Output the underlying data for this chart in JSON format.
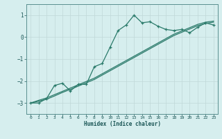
{
  "title": "",
  "xlabel": "Humidex (Indice chaleur)",
  "ylabel": "",
  "bg_color": "#d6eeee",
  "grid_color": "#c0d8d8",
  "line_color": "#2a7a6a",
  "xlim": [
    -0.5,
    23.5
  ],
  "ylim": [
    -3.5,
    1.5
  ],
  "xticks": [
    0,
    1,
    2,
    3,
    4,
    5,
    6,
    7,
    8,
    9,
    10,
    11,
    12,
    13,
    14,
    15,
    16,
    17,
    18,
    19,
    20,
    21,
    22,
    23
  ],
  "yticks": [
    -3,
    -2,
    -1,
    0,
    1
  ],
  "series1_x": [
    0,
    1,
    2,
    3,
    4,
    5,
    6,
    7,
    8,
    9,
    10,
    11,
    12,
    13,
    14,
    15,
    16,
    17,
    18,
    19,
    20,
    21,
    22,
    23
  ],
  "series1_y": [
    -3.0,
    -3.0,
    -2.8,
    -2.2,
    -2.1,
    -2.45,
    -2.15,
    -2.15,
    -1.35,
    -1.2,
    -0.45,
    0.3,
    0.55,
    1.0,
    0.65,
    0.7,
    0.5,
    0.35,
    0.3,
    0.35,
    0.2,
    0.45,
    0.65,
    0.55
  ],
  "series2_x": [
    0,
    1,
    2,
    3,
    4,
    5,
    6,
    7,
    8,
    9,
    10,
    11,
    12,
    13,
    14,
    15,
    16,
    17,
    18,
    19,
    20,
    21,
    22,
    23
  ],
  "series2_y": [
    -3.0,
    -2.92,
    -2.83,
    -2.68,
    -2.52,
    -2.38,
    -2.23,
    -2.08,
    -1.93,
    -1.73,
    -1.53,
    -1.33,
    -1.13,
    -0.93,
    -0.73,
    -0.53,
    -0.33,
    -0.13,
    0.07,
    0.22,
    0.37,
    0.52,
    0.62,
    0.68
  ],
  "series3_x": [
    0,
    1,
    2,
    3,
    4,
    5,
    6,
    7,
    8,
    9,
    10,
    11,
    12,
    13,
    14,
    15,
    16,
    17,
    18,
    19,
    20,
    21,
    22,
    23
  ],
  "series3_y": [
    -3.0,
    -2.88,
    -2.77,
    -2.62,
    -2.47,
    -2.32,
    -2.17,
    -2.02,
    -1.87,
    -1.67,
    -1.47,
    -1.27,
    -1.07,
    -0.87,
    -0.67,
    -0.47,
    -0.27,
    -0.07,
    0.13,
    0.28,
    0.43,
    0.58,
    0.68,
    0.73
  ]
}
